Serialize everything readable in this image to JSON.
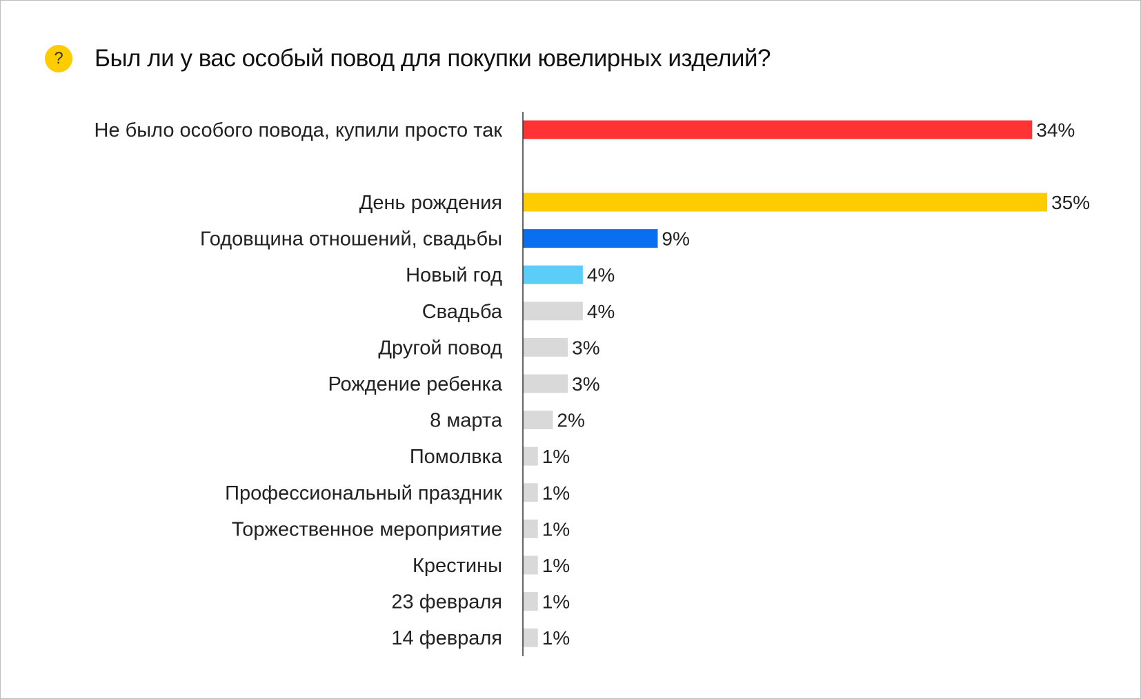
{
  "header": {
    "icon": "question-icon",
    "icon_glyph": "?",
    "title": "Был ли у вас особый повод для покупки ювелирных изделий?"
  },
  "chart_data": {
    "type": "bar",
    "orientation": "horizontal",
    "title": "Был ли у вас особый повод для покупки ювелирных изделий?",
    "xlabel": "",
    "ylabel": "",
    "xlim": [
      0,
      35
    ],
    "grid": false,
    "categories": [
      "Не было особого повода, купили просто так",
      "День рождения",
      "Годовщина отношений, свадьбы",
      "Новый год",
      "Свадьба",
      "Другой повод",
      "Рождение ребенка",
      "8 марта",
      "Помолвка",
      "Профессиональный праздник",
      "Торжественное мероприятие",
      "Крестины",
      "23 февраля",
      "14 февраля"
    ],
    "values": [
      34,
      35,
      9,
      4,
      4,
      3,
      3,
      2,
      1,
      1,
      1,
      1,
      1,
      1
    ],
    "value_labels": [
      "34%",
      "35%",
      "9%",
      "4%",
      "4%",
      "3%",
      "3%",
      "2%",
      "1%",
      "1%",
      "1%",
      "1%",
      "1%",
      "1%"
    ],
    "colors": [
      "#ff3333",
      "#ffcc00",
      "#0a6ef0",
      "#5ccdf8",
      "#d9d9d9",
      "#d9d9d9",
      "#d9d9d9",
      "#d9d9d9",
      "#d9d9d9",
      "#d9d9d9",
      "#d9d9d9",
      "#d9d9d9",
      "#d9d9d9",
      "#d9d9d9"
    ]
  }
}
